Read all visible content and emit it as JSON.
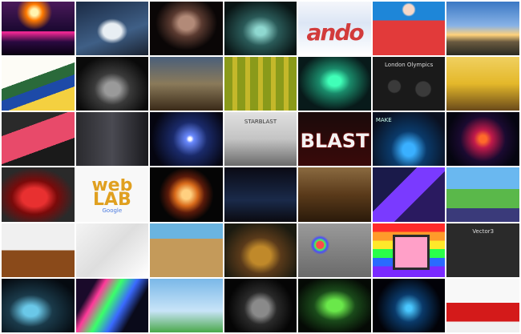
{
  "gallery": {
    "tiles": [
      {
        "name": "neon-flight-game-thumbnail"
      },
      {
        "name": "space-shuttle-thumbnail"
      },
      {
        "name": "skull-face-thumbnail"
      },
      {
        "name": "sci-fi-corridor-thumbnail"
      },
      {
        "name": "ribbon-text-thumbnail",
        "label": "ando"
      },
      {
        "name": "red-table-game-thumbnail"
      },
      {
        "name": "sunset-landscape-thumbnail"
      },
      {
        "name": "colorful-track-thumbnail"
      },
      {
        "name": "black-car-render-thumbnail"
      },
      {
        "name": "village-scene-thumbnail"
      },
      {
        "name": "voxel-terrain-thumbnail"
      },
      {
        "name": "aurora-thumbnail"
      },
      {
        "name": "london-olympics-thumbnail",
        "label": "London Olympics"
      },
      {
        "name": "robot-crowd-thumbnail"
      },
      {
        "name": "red-racer-thumbnail"
      },
      {
        "name": "dark-city-thumbnail"
      },
      {
        "name": "space-light-thumbnail"
      },
      {
        "name": "silhouette-gate-thumbnail",
        "label": "STARBLAST"
      },
      {
        "name": "blast-game-thumbnail",
        "label": "BLAST"
      },
      {
        "name": "tunnel-racer-thumbnail",
        "label": "MAKE"
      },
      {
        "name": "fiery-rings-thumbnail"
      },
      {
        "name": "red-sports-car-thumbnail"
      },
      {
        "name": "web-lab-thumbnail",
        "label": "web LAB",
        "sub": "Google"
      },
      {
        "name": "fiery-sphere-thumbnail"
      },
      {
        "name": "band-performance-thumbnail"
      },
      {
        "name": "palace-hall-thumbnail"
      },
      {
        "name": "crystal-shapes-thumbnail"
      },
      {
        "name": "playground-thumbnail"
      },
      {
        "name": "jenga-tower-thumbnail"
      },
      {
        "name": "city-map-thumbnail"
      },
      {
        "name": "desert-car-thumbnail"
      },
      {
        "name": "pool-table-thumbnail"
      },
      {
        "name": "color-cube-thumbnail"
      },
      {
        "name": "nyan-cat-thumbnail"
      },
      {
        "name": "vector-editor-thumbnail",
        "label": "Vector3"
      },
      {
        "name": "glass-objects-thumbnail"
      },
      {
        "name": "rainbow-light-trails-thumbnail"
      },
      {
        "name": "beanstalk-thumbnail"
      },
      {
        "name": "crystal-ball-thumbnail"
      },
      {
        "name": "green-tunnel-thumbnail"
      },
      {
        "name": "blue-particles-thumbnail"
      },
      {
        "name": "formula-car-thumbnail"
      }
    ]
  }
}
